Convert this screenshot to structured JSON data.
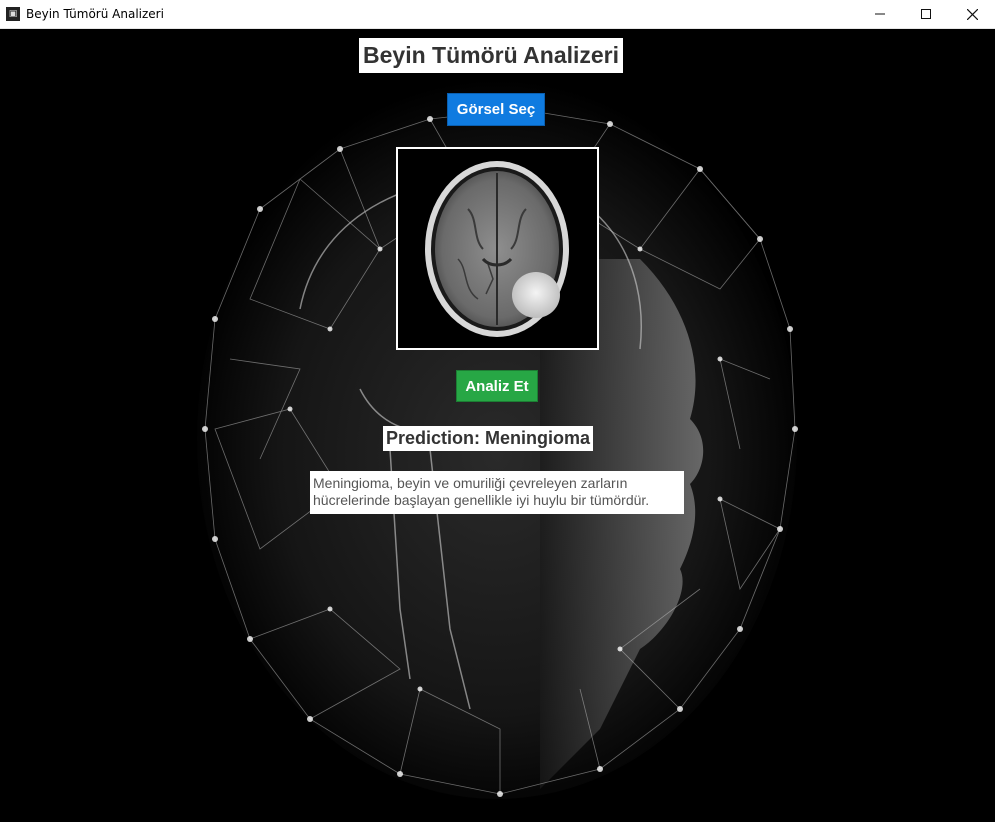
{
  "window": {
    "title": "Beyin Tümörü Analizeri"
  },
  "app": {
    "heading": "Beyin Tümörü Analizeri",
    "select_image_label": "Görsel Seç",
    "analyze_label": "Analiz Et",
    "prediction_text": "Prediction: Meningioma",
    "description_text": "Meningioma, beyin ve omuriliği çevreleyen zarların\nhücrelerinde başlayan genellikle iyi huylu bir tümördür."
  },
  "colors": {
    "select_button": "#0f7be0",
    "analyze_button": "#27a745",
    "background": "#000000",
    "text_dark": "#333333"
  },
  "icons": {
    "minimize": "minimize-icon",
    "maximize": "maximize-icon",
    "close": "close-icon"
  }
}
